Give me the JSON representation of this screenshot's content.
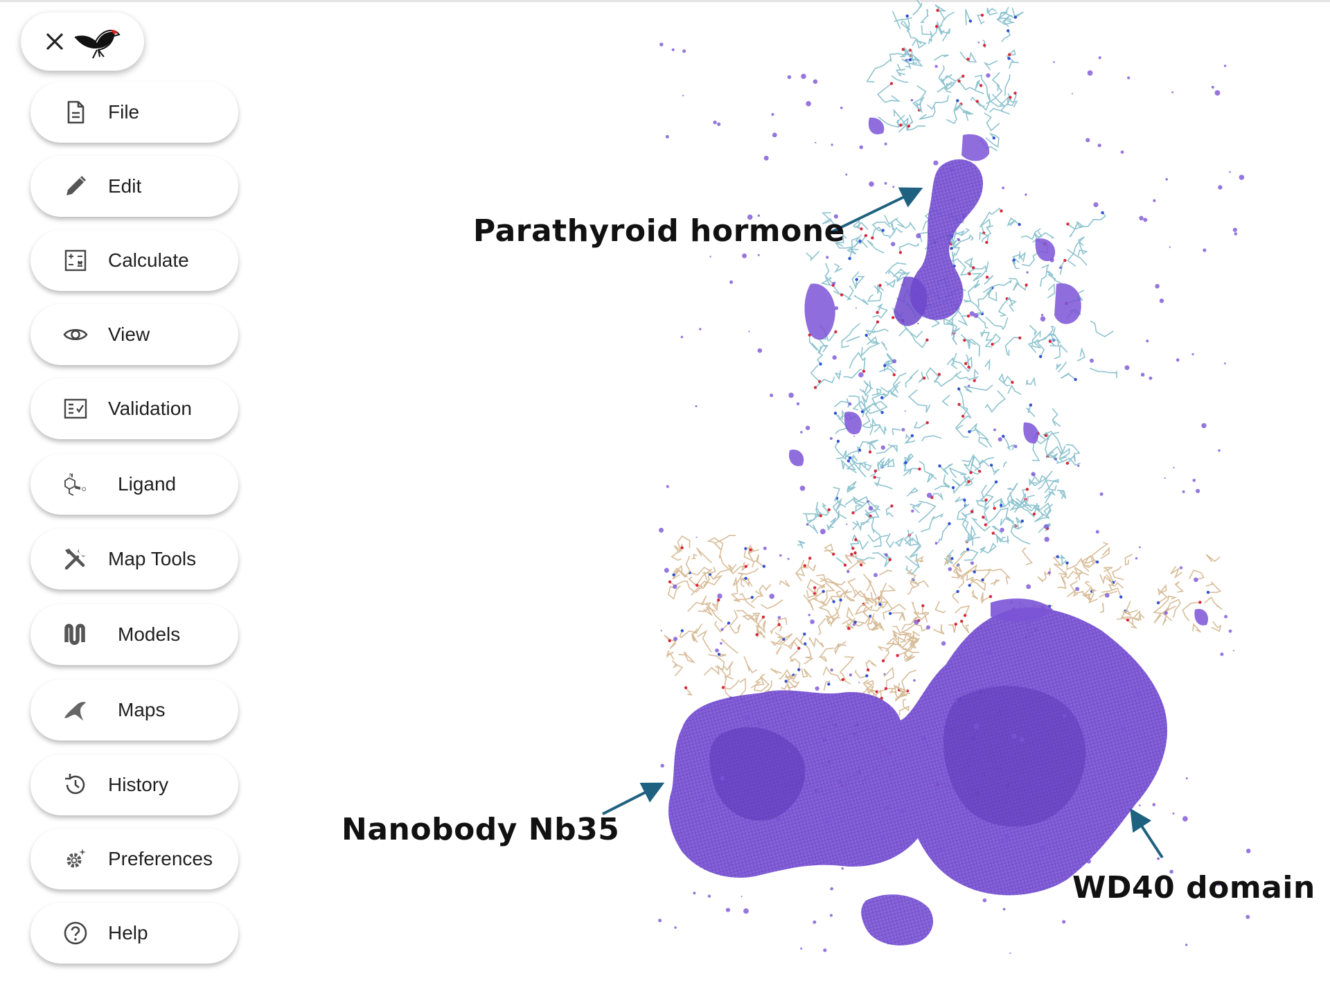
{
  "menu": {
    "items": [
      {
        "label": "File",
        "icon": "file-icon"
      },
      {
        "label": "Edit",
        "icon": "pencil-icon"
      },
      {
        "label": "Calculate",
        "icon": "calculator-icon"
      },
      {
        "label": "View",
        "icon": "eye-icon"
      },
      {
        "label": "Validation",
        "icon": "checklist-icon"
      },
      {
        "label": "Ligand",
        "icon": "molecule-icon"
      },
      {
        "label": "Map Tools",
        "icon": "tools-icon"
      },
      {
        "label": "Models",
        "icon": "ribbon-icon"
      },
      {
        "label": "Maps",
        "icon": "map-blob-icon"
      },
      {
        "label": "History",
        "icon": "history-icon"
      },
      {
        "label": "Preferences",
        "icon": "gear-icon"
      },
      {
        "label": "Help",
        "icon": "help-icon"
      }
    ]
  },
  "annotations": {
    "pth": "Parathyroid  hormone",
    "nanobody": "Nanobody Nb35",
    "wd40": "WD40 domain"
  },
  "colors": {
    "density": "#7b54d6",
    "density_dark": "#5a36b8",
    "arrow": "#1f6180",
    "stick_receptor": "#8ec3cf",
    "stick_gprotein": "#d8bd9a"
  }
}
